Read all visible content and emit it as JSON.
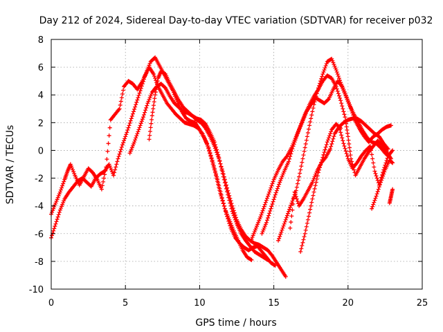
{
  "chart_data": {
    "type": "scatter",
    "title": "Day 212 of 2024, Sidereal Day-to-day VTEC variation (SDTVAR) for receiver p032",
    "xlabel": "GPS time / hours",
    "ylabel": "SDTVAR / TECUs",
    "xlim": [
      0,
      25
    ],
    "ylim": [
      -10,
      8
    ],
    "xticks": [
      0,
      5,
      10,
      15,
      20,
      25
    ],
    "yticks": [
      -10,
      -8,
      -6,
      -4,
      -2,
      0,
      2,
      4,
      6,
      8
    ],
    "grid": true,
    "marker": "+",
    "color": "#ff0000",
    "series": [
      {
        "x": [
          0.0,
          0.3,
          0.6,
          0.9,
          1.2,
          1.5,
          1.8,
          2.1,
          2.4,
          2.7,
          3.0,
          3.3,
          3.6,
          3.9,
          4.2,
          4.5,
          4.8,
          5.1,
          5.4,
          5.7,
          6.0,
          6.3,
          6.6,
          6.9,
          7.2,
          7.5,
          7.8,
          8.1,
          8.4,
          8.7,
          9.0,
          9.3,
          9.6,
          9.9,
          10.2,
          10.5,
          10.8,
          11.1,
          11.4,
          11.7,
          12.0,
          12.3,
          12.6,
          12.9,
          13.2,
          13.5
        ],
        "y": [
          -6.3,
          -5.3,
          -4.3,
          -3.5,
          -3.0,
          -2.6,
          -2.2,
          -2.0,
          -2.3,
          -2.6,
          -2.0,
          -1.7,
          -1.5,
          -1.0,
          -1.8,
          -0.6,
          0.4,
          1.3,
          2.3,
          3.3,
          4.3,
          5.3,
          6.0,
          5.5,
          4.6,
          4.0,
          3.4,
          3.0,
          2.6,
          2.3,
          2.0,
          1.9,
          1.8,
          1.6,
          1.2,
          0.5,
          -0.6,
          -1.8,
          -3.1,
          -4.2,
          -5.0,
          -5.8,
          -6.5,
          -7.2,
          -7.7,
          -7.9
        ]
      },
      {
        "x": [
          0.0,
          0.3,
          0.6,
          0.9,
          1.1,
          1.3,
          1.6,
          1.9,
          2.2,
          2.5,
          2.8,
          3.1,
          3.4,
          3.7,
          4.0,
          4.3,
          4.6,
          4.9,
          5.2,
          5.5,
          5.8,
          6.1,
          6.4,
          6.7,
          7.0,
          7.3,
          7.6,
          7.9,
          8.2,
          8.5,
          8.8,
          9.1,
          9.4,
          9.7,
          10.0,
          10.3,
          10.6,
          10.9,
          11.2,
          11.5,
          11.8,
          12.1,
          12.4,
          12.7,
          13.0,
          13.3,
          13.6,
          13.9,
          14.2,
          14.5,
          14.8,
          15.1
        ],
        "y": [
          -4.6,
          -3.8,
          -3.0,
          -2.1,
          -1.5,
          -1.0,
          -1.8,
          -2.5,
          -1.9,
          -1.3,
          -1.6,
          -2.1,
          -2.8,
          -1.2,
          2.2,
          2.6,
          3.0,
          4.6,
          5.0,
          4.8,
          4.4,
          4.9,
          5.6,
          6.4,
          6.7,
          6.1,
          5.5,
          4.9,
          4.3,
          3.5,
          2.8,
          2.3,
          2.1,
          2.0,
          1.5,
          0.9,
          0.2,
          -0.9,
          -2.1,
          -3.4,
          -4.6,
          -5.6,
          -6.3,
          -6.7,
          -7.0,
          -7.2,
          -7.0,
          -6.9,
          -7.3,
          -7.7,
          -8.1,
          -8.3
        ]
      },
      {
        "x": [
          5.3,
          5.6,
          5.9,
          6.2,
          6.5,
          6.8,
          7.1,
          7.4,
          7.7,
          8.0,
          8.3,
          8.6,
          8.9,
          9.2,
          9.5,
          9.8,
          10.1,
          10.4,
          10.7,
          11.0,
          11.3,
          11.6,
          11.9,
          12.2,
          12.5,
          12.8,
          13.1,
          13.4,
          13.7,
          14.0,
          14.3,
          14.6
        ],
        "y": [
          -0.2,
          0.6,
          1.5,
          2.4,
          3.4,
          4.2,
          4.6,
          4.8,
          4.5,
          3.9,
          3.4,
          3.1,
          2.8,
          2.7,
          2.5,
          2.3,
          2.2,
          1.9,
          1.3,
          0.6,
          -0.5,
          -1.9,
          -3.2,
          -4.4,
          -5.3,
          -6.0,
          -6.5,
          -6.9,
          -7.3,
          -7.5,
          -7.7,
          -7.9
        ]
      },
      {
        "x": [
          6.6,
          6.8,
          7.0,
          7.2,
          7.4,
          7.7,
          8.0,
          8.3,
          8.6,
          8.9,
          9.2,
          9.5,
          9.8,
          10.1,
          10.4,
          10.7,
          11.0,
          11.3,
          11.6,
          11.9,
          12.2,
          12.5,
          12.8,
          13.1,
          13.4,
          13.7,
          14.0,
          14.3,
          14.6,
          14.9,
          15.2,
          15.5,
          15.8
        ],
        "y": [
          0.8,
          2.5,
          4.0,
          5.2,
          5.7,
          5.5,
          4.8,
          4.2,
          3.6,
          3.1,
          2.8,
          2.5,
          2.2,
          2.0,
          1.6,
          1.0,
          0.3,
          -0.6,
          -1.7,
          -2.9,
          -4.0,
          -5.0,
          -5.7,
          -6.2,
          -6.5,
          -6.7,
          -6.8,
          -7.0,
          -7.2,
          -7.6,
          -8.1,
          -8.6,
          -9.1
        ]
      },
      {
        "x": [
          13.5,
          13.8,
          14.1,
          14.4,
          14.7,
          15.0,
          15.3,
          15.6,
          15.9,
          16.2,
          16.5,
          16.8,
          17.1,
          17.4,
          17.7,
          18.0,
          18.3,
          18.6,
          18.9,
          19.2,
          19.5,
          19.8,
          20.0,
          20.2,
          20.5,
          20.8,
          21.1,
          21.4,
          21.7,
          22.0,
          22.3,
          22.6,
          22.9
        ],
        "y": [
          -6.4,
          -5.6,
          -4.8,
          -3.9,
          -3.0,
          -2.1,
          -1.4,
          -0.8,
          -0.4,
          0.2,
          1.0,
          1.8,
          2.6,
          3.3,
          3.9,
          4.4,
          5.0,
          5.4,
          5.2,
          4.6,
          3.6,
          2.4,
          1.0,
          -0.6,
          -1.8,
          -1.2,
          -0.6,
          -0.1,
          0.3,
          0.7,
          0.4,
          -0.1,
          -0.6
        ]
      },
      {
        "x": [
          15.3,
          15.6,
          15.9,
          16.2,
          16.5,
          16.8,
          17.1,
          17.4,
          17.7,
          18.0,
          18.3,
          18.6,
          18.9,
          19.2,
          19.5,
          19.8,
          20.1,
          20.4,
          20.7,
          21.0,
          21.3,
          21.6,
          21.9,
          22.2,
          22.5,
          22.8
        ],
        "y": [
          -6.5,
          -5.6,
          -4.7,
          -3.8,
          -2.9,
          -1.4,
          0.2,
          1.8,
          3.3,
          4.5,
          5.5,
          6.4,
          6.6,
          5.8,
          4.9,
          4.1,
          3.3,
          2.6,
          2.0,
          1.4,
          0.9,
          0.6,
          0.5,
          0.2,
          -0.2,
          -0.5
        ]
      },
      {
        "x": [
          14.2,
          14.5,
          14.8,
          15.1,
          15.4,
          15.7,
          16.0,
          16.3,
          16.6,
          16.9,
          17.2,
          17.5,
          17.8,
          18.1,
          18.4,
          18.7,
          19.0,
          19.3,
          19.6,
          19.9,
          20.2,
          20.5,
          20.8,
          21.1,
          21.4,
          21.7,
          22.0,
          22.3,
          22.6,
          22.9
        ],
        "y": [
          -6.0,
          -5.2,
          -4.2,
          -3.2,
          -2.3,
          -1.5,
          -0.8,
          0.3,
          1.2,
          2.0,
          2.8,
          3.3,
          3.8,
          3.6,
          3.4,
          3.7,
          4.4,
          5.0,
          4.6,
          3.8,
          3.0,
          2.1,
          1.5,
          1.0,
          0.6,
          1.0,
          1.2,
          1.5,
          1.7,
          1.8
        ]
      },
      {
        "x": [
          16.1,
          16.4,
          16.7,
          17.0,
          17.3,
          17.6,
          17.9,
          18.2,
          18.5,
          18.8,
          19.1,
          19.4,
          19.7,
          20.0,
          20.3,
          20.6,
          20.9,
          21.2,
          21.5,
          21.8,
          22.1,
          22.4,
          22.7
        ],
        "y": [
          -5.6,
          -3.0,
          -4.0,
          -3.5,
          -2.9,
          -2.3,
          -1.5,
          -0.9,
          -0.5,
          0.1,
          1.2,
          1.7,
          2.0,
          2.2,
          2.3,
          2.3,
          2.1,
          1.8,
          1.5,
          1.2,
          1.0,
          0.5,
          0.1
        ]
      },
      {
        "x": [
          16.8,
          17.1,
          17.4,
          17.7,
          18.0,
          18.3,
          18.6,
          18.9,
          19.2,
          19.5
        ],
        "y": [
          -7.3,
          -6.0,
          -4.5,
          -3.0,
          -1.6,
          -0.5,
          0.6,
          1.5,
          1.9,
          1.6
        ]
      },
      {
        "x": [
          19.4,
          19.7,
          20.0,
          20.3,
          20.6,
          20.9,
          21.2,
          21.5,
          21.8,
          22.1,
          22.4,
          22.7,
          23.0
        ],
        "y": [
          1.7,
          0.5,
          -0.6,
          -1.3,
          -0.9,
          -0.4,
          0.0,
          0.3,
          -1.5,
          -2.5,
          -1.4,
          -0.4,
          0.0
        ]
      },
      {
        "x": [
          21.6,
          21.9,
          22.2,
          22.5,
          22.8,
          23.0
        ],
        "y": [
          -4.2,
          -3.3,
          -2.3,
          -1.4,
          -0.7,
          -0.9
        ]
      },
      {
        "x": [
          22.8,
          22.9,
          23.0
        ],
        "y": [
          -3.8,
          -3.3,
          -2.8
        ]
      }
    ]
  }
}
